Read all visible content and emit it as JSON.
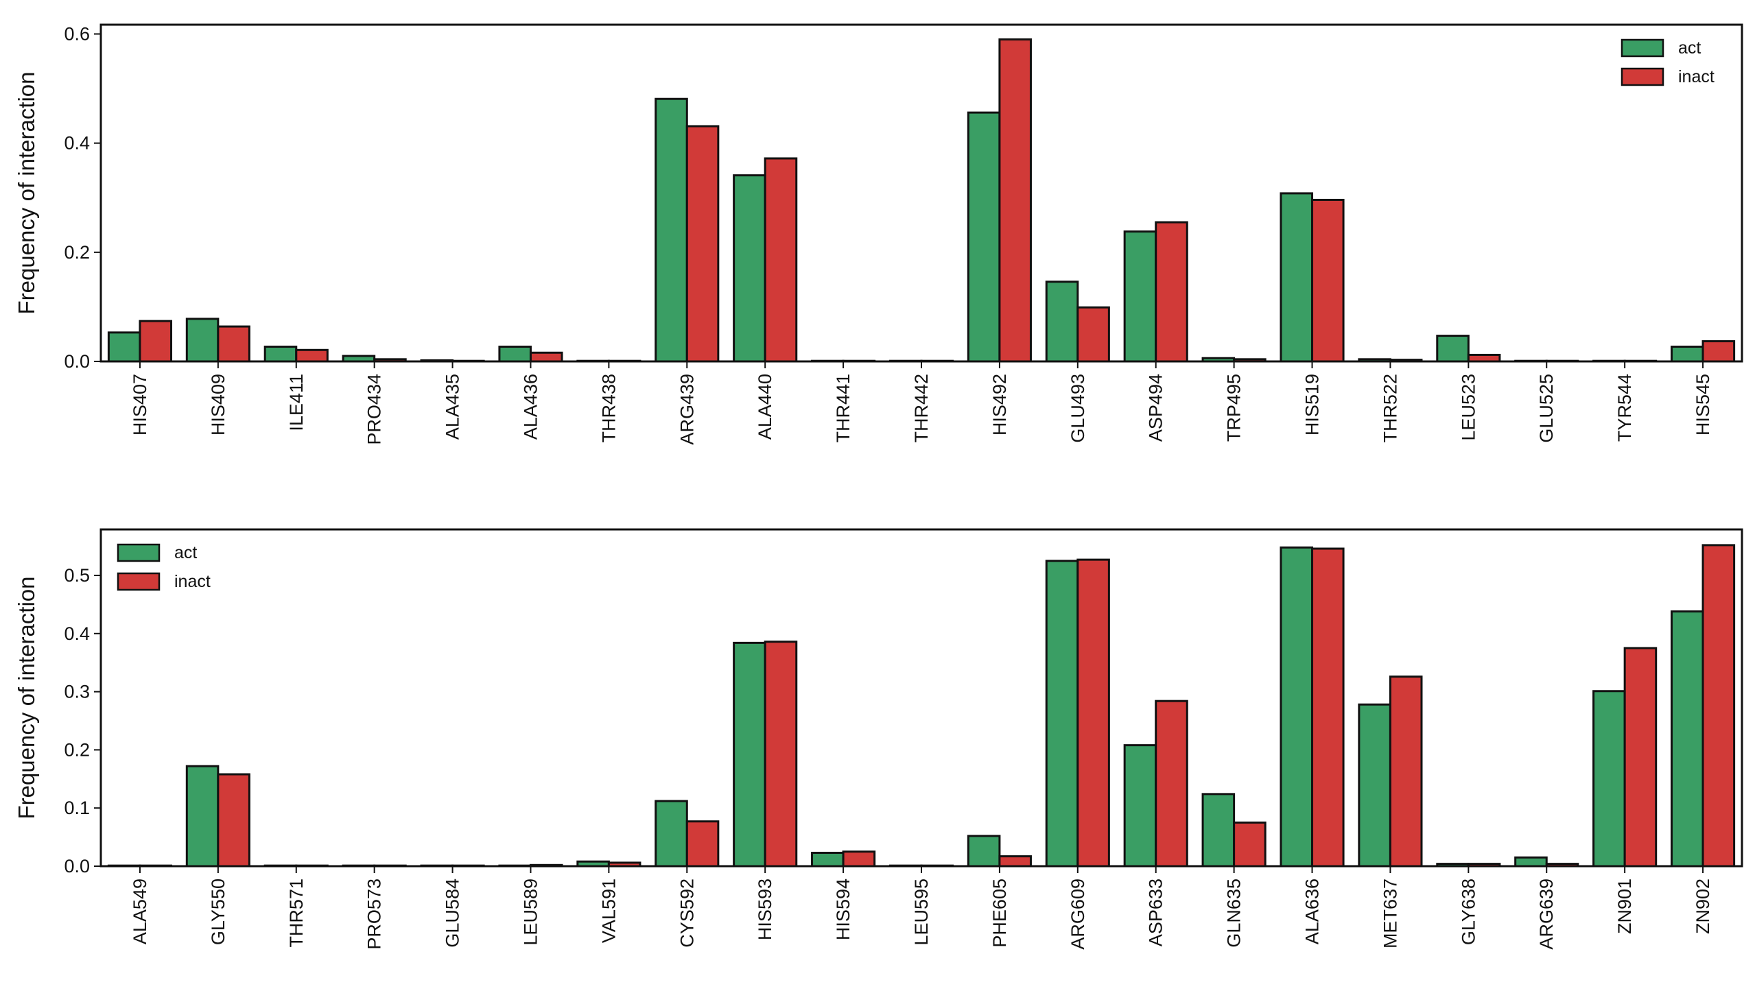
{
  "chart_data": [
    {
      "type": "bar",
      "ylabel": "Frequency of interaction",
      "categories": [
        "HIS407",
        "HIS409",
        "ILE411",
        "PRO434",
        "ALA435",
        "ALA436",
        "THR438",
        "ARG439",
        "ALA440",
        "THR441",
        "THR442",
        "HIS492",
        "GLU493",
        "ASP494",
        "TRP495",
        "HIS519",
        "THR522",
        "LEU523",
        "GLU525",
        "TYR544",
        "HIS545"
      ],
      "series": [
        {
          "name": "act",
          "color": "#3a9e64",
          "values": [
            0.053,
            0.078,
            0.027,
            0.01,
            0.002,
            0.027,
            0.001,
            0.481,
            0.341,
            0.001,
            0.001,
            0.456,
            0.146,
            0.238,
            0.006,
            0.308,
            0.004,
            0.047,
            0.001,
            0.001,
            0.027
          ]
        },
        {
          "name": "inact",
          "color": "#d13a38",
          "values": [
            0.074,
            0.064,
            0.021,
            0.004,
            0.001,
            0.016,
            0.001,
            0.431,
            0.372,
            0.001,
            0.001,
            0.59,
            0.099,
            0.255,
            0.004,
            0.296,
            0.003,
            0.012,
            0.001,
            0.001,
            0.037
          ]
        }
      ],
      "ylim": [
        0,
        0.617
      ],
      "yticks": [
        {
          "value": 0,
          "label": "0.0"
        },
        0.2,
        0.4,
        0.6
      ],
      "legend": "upper right"
    },
    {
      "type": "bar",
      "ylabel": "Frequency of interaction",
      "categories": [
        "ALA549",
        "GLY550",
        "THR571",
        "PRO573",
        "GLU584",
        "LEU589",
        "VAL591",
        "CYS592",
        "HIS593",
        "HIS594",
        "LEU595",
        "PHE605",
        "ARG609",
        "ASP633",
        "GLN635",
        "ALA636",
        "MET637",
        "GLY638",
        "ARG639",
        "ZN901",
        "ZN902"
      ],
      "series": [
        {
          "name": "act",
          "color": "#3a9e64",
          "values": [
            0.001,
            0.172,
            0.001,
            0.001,
            0.001,
            0.001,
            0.008,
            0.112,
            0.384,
            0.023,
            0.001,
            0.052,
            0.525,
            0.208,
            0.124,
            0.548,
            0.278,
            0.004,
            0.015,
            0.301,
            0.438
          ]
        },
        {
          "name": "inact",
          "color": "#d13a38",
          "values": [
            0.001,
            0.158,
            0.001,
            0.001,
            0.001,
            0.002,
            0.006,
            0.077,
            0.386,
            0.025,
            0.001,
            0.017,
            0.527,
            0.284,
            0.075,
            0.546,
            0.326,
            0.004,
            0.004,
            0.375,
            0.552
          ]
        }
      ],
      "ylim": [
        0,
        0.579
      ],
      "yticks": [
        {
          "value": 0,
          "label": "0.0"
        },
        0.1,
        0.2,
        0.3,
        0.4,
        0.5
      ],
      "legend": "upper left"
    }
  ]
}
